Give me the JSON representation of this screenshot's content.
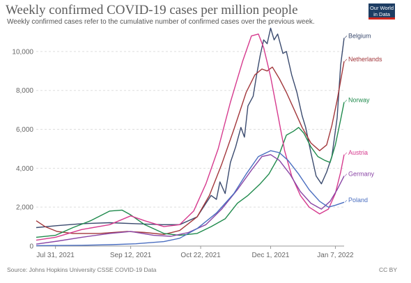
{
  "header": {
    "title": "Weekly confirmed COVID-19 cases per million people",
    "subtitle": "Weekly confirmed cases refer to the cumulative number of confirmed cases over the previous week.",
    "logo_line1": "Our World",
    "logo_line2": "in Data"
  },
  "footer": {
    "source": "Source: Johns Hopkins University CSSE COVID-19 Data",
    "license": "CC BY"
  },
  "chart_data": {
    "type": "line",
    "title": "Weekly confirmed COVID-19 cases per million people",
    "subtitle": "Weekly confirmed cases refer to the cumulative number of confirmed cases over the previous week.",
    "xlabel": "",
    "ylabel": "",
    "x_range": [
      "2021-07-20",
      "2022-01-12"
    ],
    "ylim": [
      0,
      11000
    ],
    "y_ticks": [
      2000,
      4000,
      6000,
      8000,
      10000
    ],
    "y_tick_labels": [
      "2,000",
      "4,000",
      "6,000",
      "8,000",
      "10,000"
    ],
    "x_ticks": [
      "2021-07-31",
      "2021-09-12",
      "2021-10-22",
      "2021-12-01",
      "2022-01-07"
    ],
    "x_tick_labels": [
      "Jul 31, 2021",
      "Sep 12, 2021",
      "Oct 22, 2021",
      "Dec 1, 2021",
      "Jan 7, 2022"
    ],
    "grid": true,
    "legend": "inline labels at right end of lines",
    "series": [
      {
        "name": "Belgium",
        "color": "#3a4a6e",
        "points": [
          [
            "2021-07-20",
            950
          ],
          [
            "2021-08-01",
            1050
          ],
          [
            "2021-08-15",
            1150
          ],
          [
            "2021-08-31",
            1200
          ],
          [
            "2021-09-15",
            1150
          ],
          [
            "2021-09-30",
            1100
          ],
          [
            "2021-10-10",
            1100
          ],
          [
            "2021-10-20",
            1500
          ],
          [
            "2021-10-25",
            2200
          ],
          [
            "2021-10-28",
            2600
          ],
          [
            "2021-10-31",
            2400
          ],
          [
            "2021-11-02",
            3300
          ],
          [
            "2021-11-05",
            2700
          ],
          [
            "2021-11-08",
            4300
          ],
          [
            "2021-11-11",
            5100
          ],
          [
            "2021-11-14",
            6100
          ],
          [
            "2021-11-16",
            5600
          ],
          [
            "2021-11-18",
            7200
          ],
          [
            "2021-11-21",
            7700
          ],
          [
            "2021-11-23",
            8800
          ],
          [
            "2021-11-25",
            9800
          ],
          [
            "2021-11-27",
            10600
          ],
          [
            "2021-11-29",
            10400
          ],
          [
            "2021-12-01",
            11200
          ],
          [
            "2021-12-03",
            10600
          ],
          [
            "2021-12-05",
            10900
          ],
          [
            "2021-12-08",
            9900
          ],
          [
            "2021-12-10",
            10000
          ],
          [
            "2021-12-13",
            8800
          ],
          [
            "2021-12-16",
            7900
          ],
          [
            "2021-12-19",
            6700
          ],
          [
            "2021-12-21",
            6100
          ],
          [
            "2021-12-24",
            4800
          ],
          [
            "2021-12-27",
            3600
          ],
          [
            "2021-12-30",
            3200
          ],
          [
            "2022-01-02",
            3800
          ],
          [
            "2022-01-05",
            4600
          ],
          [
            "2022-01-08",
            6600
          ],
          [
            "2022-01-10",
            9300
          ],
          [
            "2022-01-12",
            10700
          ]
        ]
      },
      {
        "name": "Netherlands",
        "color": "#a2373b",
        "points": [
          [
            "2021-07-20",
            1300
          ],
          [
            "2021-07-25",
            1000
          ],
          [
            "2021-08-01",
            750
          ],
          [
            "2021-08-10",
            650
          ],
          [
            "2021-08-25",
            650
          ],
          [
            "2021-09-10",
            750
          ],
          [
            "2021-09-20",
            700
          ],
          [
            "2021-10-01",
            600
          ],
          [
            "2021-10-10",
            800
          ],
          [
            "2021-10-20",
            1500
          ],
          [
            "2021-10-27",
            2600
          ],
          [
            "2021-11-03",
            4200
          ],
          [
            "2021-11-10",
            6000
          ],
          [
            "2021-11-17",
            7900
          ],
          [
            "2021-11-22",
            8800
          ],
          [
            "2021-11-26",
            9100
          ],
          [
            "2021-11-29",
            9000
          ],
          [
            "2021-12-02",
            9200
          ],
          [
            "2021-12-06",
            8600
          ],
          [
            "2021-12-10",
            7900
          ],
          [
            "2021-12-14",
            7100
          ],
          [
            "2021-12-19",
            6100
          ],
          [
            "2021-12-24",
            5300
          ],
          [
            "2021-12-29",
            4900
          ],
          [
            "2022-01-02",
            5200
          ],
          [
            "2022-01-05",
            6200
          ],
          [
            "2022-01-08",
            7500
          ],
          [
            "2022-01-12",
            9500
          ]
        ]
      },
      {
        "name": "Norway",
        "color": "#1f8a4c",
        "points": [
          [
            "2021-07-20",
            450
          ],
          [
            "2021-07-31",
            550
          ],
          [
            "2021-08-10",
            950
          ],
          [
            "2021-08-20",
            1300
          ],
          [
            "2021-08-31",
            1800
          ],
          [
            "2021-09-07",
            1850
          ],
          [
            "2021-09-12",
            1600
          ],
          [
            "2021-09-20",
            1100
          ],
          [
            "2021-10-01",
            650
          ],
          [
            "2021-10-10",
            550
          ],
          [
            "2021-10-20",
            650
          ],
          [
            "2021-10-28",
            1000
          ],
          [
            "2021-11-05",
            1400
          ],
          [
            "2021-11-12",
            2200
          ],
          [
            "2021-11-18",
            2600
          ],
          [
            "2021-11-25",
            3200
          ],
          [
            "2021-11-30",
            3700
          ],
          [
            "2021-12-05",
            4500
          ],
          [
            "2021-12-10",
            5700
          ],
          [
            "2021-12-14",
            5900
          ],
          [
            "2021-12-17",
            6100
          ],
          [
            "2021-12-20",
            5800
          ],
          [
            "2021-12-24",
            5100
          ],
          [
            "2021-12-28",
            4600
          ],
          [
            "2022-01-01",
            4400
          ],
          [
            "2022-01-04",
            4300
          ],
          [
            "2022-01-07",
            5200
          ],
          [
            "2022-01-10",
            6500
          ],
          [
            "2022-01-12",
            7400
          ]
        ]
      },
      {
        "name": "Austria",
        "color": "#d63a8e",
        "points": [
          [
            "2021-07-20",
            300
          ],
          [
            "2021-07-31",
            450
          ],
          [
            "2021-08-15",
            850
          ],
          [
            "2021-08-31",
            1100
          ],
          [
            "2021-09-12",
            1550
          ],
          [
            "2021-09-20",
            1300
          ],
          [
            "2021-10-01",
            1000
          ],
          [
            "2021-10-10",
            1100
          ],
          [
            "2021-10-18",
            1800
          ],
          [
            "2021-10-25",
            3200
          ],
          [
            "2021-11-01",
            5000
          ],
          [
            "2021-11-08",
            7400
          ],
          [
            "2021-11-15",
            9500
          ],
          [
            "2021-11-20",
            10800
          ],
          [
            "2021-11-24",
            10900
          ],
          [
            "2021-11-27",
            10200
          ],
          [
            "2021-12-01",
            8700
          ],
          [
            "2021-12-05",
            6800
          ],
          [
            "2021-12-09",
            4900
          ],
          [
            "2021-12-13",
            3600
          ],
          [
            "2021-12-18",
            2600
          ],
          [
            "2021-12-23",
            2000
          ],
          [
            "2021-12-29",
            1650
          ],
          [
            "2022-01-03",
            1900
          ],
          [
            "2022-01-07",
            2700
          ],
          [
            "2022-01-10",
            3800
          ],
          [
            "2022-01-12",
            4700
          ]
        ]
      },
      {
        "name": "Germany",
        "color": "#8a46a6",
        "points": [
          [
            "2021-07-20",
            100
          ],
          [
            "2021-08-01",
            250
          ],
          [
            "2021-08-15",
            450
          ],
          [
            "2021-08-31",
            650
          ],
          [
            "2021-09-12",
            750
          ],
          [
            "2021-09-25",
            550
          ],
          [
            "2021-10-05",
            500
          ],
          [
            "2021-10-15",
            700
          ],
          [
            "2021-10-25",
            1100
          ],
          [
            "2021-11-03",
            1900
          ],
          [
            "2021-11-12",
            2900
          ],
          [
            "2021-11-20",
            3900
          ],
          [
            "2021-11-26",
            4600
          ],
          [
            "2021-12-01",
            4700
          ],
          [
            "2021-12-06",
            4400
          ],
          [
            "2021-12-12",
            3700
          ],
          [
            "2021-12-18",
            2800
          ],
          [
            "2021-12-24",
            2200
          ],
          [
            "2021-12-30",
            1900
          ],
          [
            "2022-01-04",
            2300
          ],
          [
            "2022-01-08",
            2900
          ],
          [
            "2022-01-12",
            3600
          ]
        ]
      },
      {
        "name": "Poland",
        "color": "#4a6ec0",
        "points": [
          [
            "2021-07-20",
            20
          ],
          [
            "2021-08-01",
            30
          ],
          [
            "2021-08-15",
            40
          ],
          [
            "2021-09-01",
            70
          ],
          [
            "2021-09-15",
            120
          ],
          [
            "2021-10-01",
            230
          ],
          [
            "2021-10-10",
            400
          ],
          [
            "2021-10-20",
            900
          ],
          [
            "2021-10-31",
            1700
          ],
          [
            "2021-11-10",
            2700
          ],
          [
            "2021-11-17",
            3700
          ],
          [
            "2021-11-24",
            4600
          ],
          [
            "2021-12-01",
            4900
          ],
          [
            "2021-12-06",
            4800
          ],
          [
            "2021-12-11",
            4400
          ],
          [
            "2021-12-17",
            3700
          ],
          [
            "2021-12-23",
            2900
          ],
          [
            "2021-12-29",
            2300
          ],
          [
            "2022-01-03",
            2000
          ],
          [
            "2022-01-07",
            2100
          ],
          [
            "2022-01-12",
            2250
          ]
        ]
      }
    ]
  }
}
